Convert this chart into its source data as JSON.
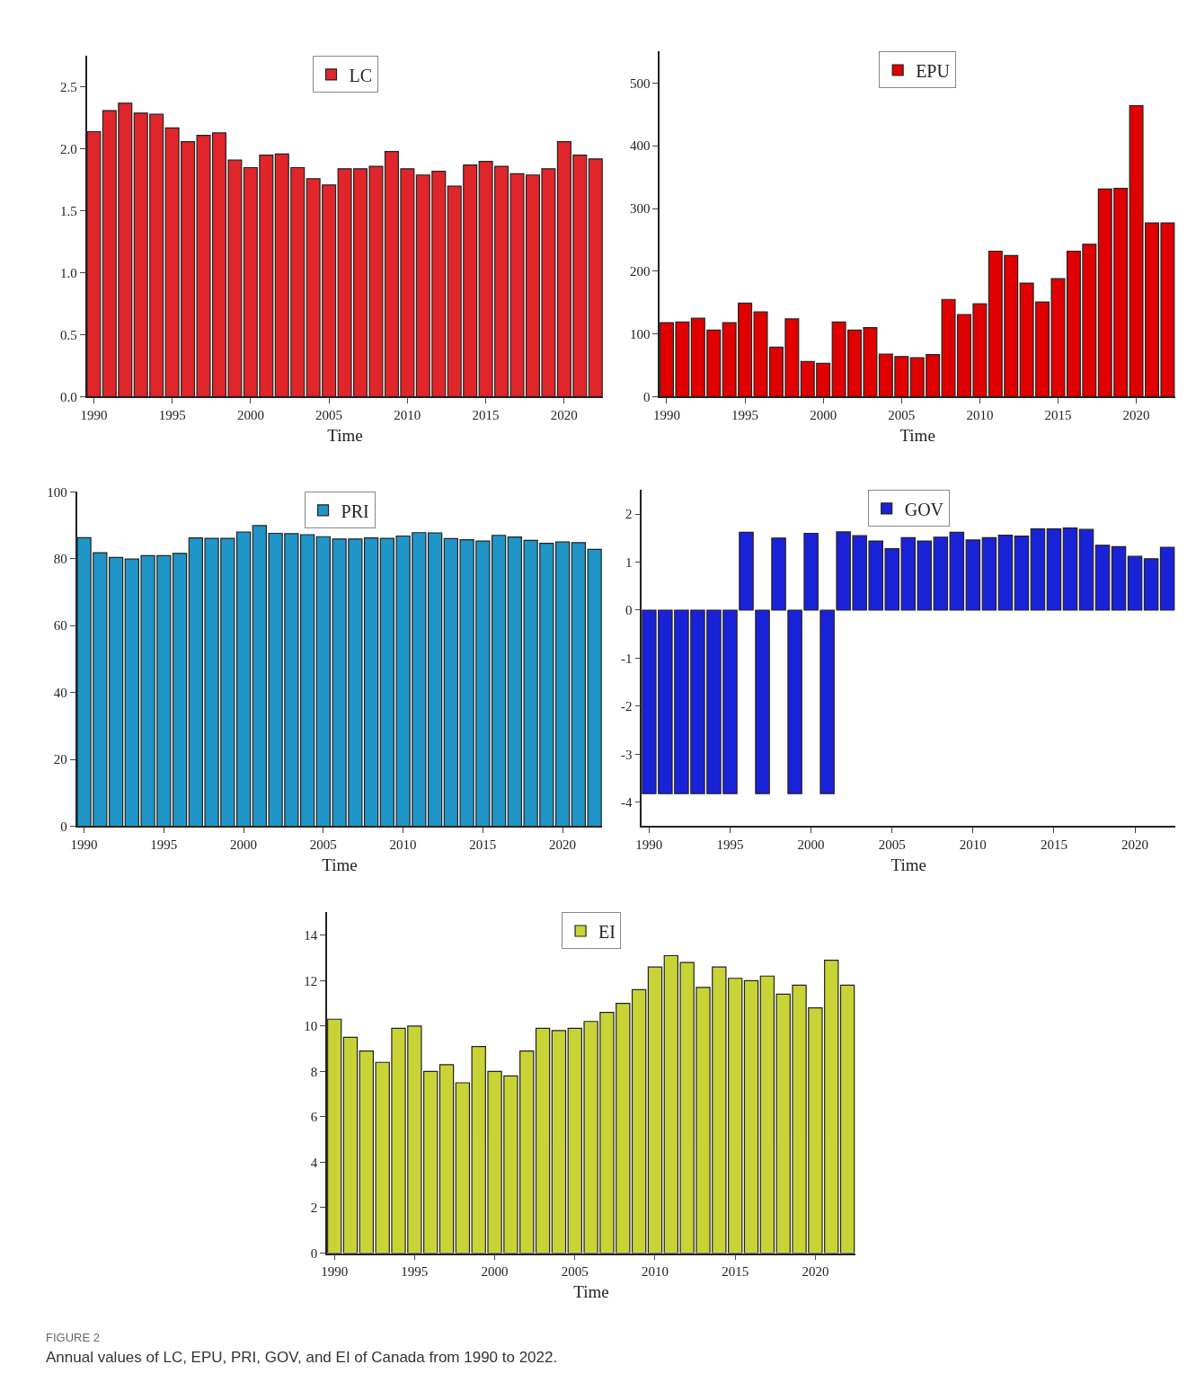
{
  "chart_data": [
    {
      "type": "bar",
      "xlabel": "Time",
      "x": [
        1990,
        1991,
        1992,
        1993,
        1994,
        1995,
        1996,
        1997,
        1998,
        1999,
        2000,
        2001,
        2002,
        2003,
        2004,
        2005,
        2006,
        2007,
        2008,
        2009,
        2010,
        2011,
        2012,
        2013,
        2014,
        2015,
        2016,
        2017,
        2018,
        2019,
        2020,
        2021,
        2022
      ],
      "xlim": [
        1989.55,
        2022.5
      ],
      "xticks": [
        1990,
        1995,
        2000,
        2005,
        2010,
        2015,
        2020
      ],
      "ylim": [
        0,
        2.75
      ],
      "yticks": [
        {
          "value": 0,
          "label": "0.0"
        },
        {
          "value": 0.5,
          "label": "0.5"
        },
        {
          "value": 1,
          "label": "1.0"
        },
        {
          "value": 1.5,
          "label": "1.5"
        },
        {
          "value": 2,
          "label": "2.0"
        },
        {
          "value": 2.5,
          "label": "2.5"
        }
      ],
      "legend": "top",
      "series": [
        {
          "name": "LC",
          "color": "#e0262b",
          "values": [
            2.14,
            2.31,
            2.37,
            2.29,
            2.28,
            2.17,
            2.06,
            2.11,
            2.13,
            1.91,
            1.85,
            1.95,
            1.96,
            1.85,
            1.76,
            1.71,
            1.84,
            1.84,
            1.86,
            1.98,
            1.84,
            1.79,
            1.82,
            1.7,
            1.87,
            1.9,
            1.86,
            1.8,
            1.79,
            1.84,
            2.06,
            1.95,
            1.92
          ]
        }
      ]
    },
    {
      "type": "bar",
      "xlabel": "Time",
      "x": [
        1990,
        1991,
        1992,
        1993,
        1994,
        1995,
        1996,
        1997,
        1998,
        1999,
        2000,
        2001,
        2002,
        2003,
        2004,
        2005,
        2006,
        2007,
        2008,
        2009,
        2010,
        2011,
        2012,
        2013,
        2014,
        2015,
        2016,
        2017,
        2018,
        2019,
        2020,
        2021,
        2022
      ],
      "xlim": [
        1989.55,
        2022.5
      ],
      "xticks": [
        1990,
        1995,
        2000,
        2005,
        2010,
        2015,
        2020
      ],
      "ylim": [
        0,
        550
      ],
      "yticks": [
        0,
        100,
        200,
        300,
        400,
        500
      ],
      "legend": "top",
      "series": [
        {
          "name": "EPU",
          "color": "#e00000",
          "values": [
            118,
            119,
            125,
            106,
            118,
            149,
            135,
            79,
            124,
            56,
            53,
            119,
            106,
            110,
            68,
            64,
            62,
            67,
            155,
            131,
            148,
            232,
            225,
            181,
            151,
            188,
            232,
            243,
            331,
            332,
            464,
            277,
            277
          ]
        }
      ]
    },
    {
      "type": "bar",
      "xlabel": "Time",
      "x": [
        1990,
        1991,
        1992,
        1993,
        1994,
        1995,
        1996,
        1997,
        1998,
        1999,
        2000,
        2001,
        2002,
        2003,
        2004,
        2005,
        2006,
        2007,
        2008,
        2009,
        2010,
        2011,
        2012,
        2013,
        2014,
        2015,
        2016,
        2017,
        2018,
        2019,
        2020,
        2021,
        2022
      ],
      "xlim": [
        1989.55,
        2022.5
      ],
      "xticks": [
        1990,
        1995,
        2000,
        2005,
        2010,
        2015,
        2020
      ],
      "ylim": [
        0,
        100
      ],
      "yticks": [
        0,
        20,
        40,
        60,
        80,
        100
      ],
      "legend": "top",
      "series": [
        {
          "name": "PRI",
          "color": "#1f95c8",
          "values": [
            86.3,
            81.8,
            80.4,
            79.9,
            80.9,
            80.9,
            81.6,
            86.2,
            86.1,
            86.1,
            88.0,
            89.9,
            87.6,
            87.5,
            87.2,
            86.6,
            85.9,
            85.9,
            86.2,
            86.1,
            86.8,
            87.8,
            87.7,
            86.0,
            85.7,
            85.3,
            87.0,
            86.5,
            85.5,
            84.6,
            85.0,
            84.8,
            82.8
          ]
        }
      ]
    },
    {
      "type": "bar",
      "xlabel": "Time",
      "x": [
        1990,
        1991,
        1992,
        1993,
        1994,
        1995,
        1996,
        1997,
        1998,
        1999,
        2000,
        2001,
        2002,
        2003,
        2004,
        2005,
        2006,
        2007,
        2008,
        2009,
        2010,
        2011,
        2012,
        2013,
        2014,
        2015,
        2016,
        2017,
        2018,
        2019,
        2020,
        2021,
        2022
      ],
      "xlim": [
        1989.55,
        2022.5
      ],
      "xticks": [
        1990,
        1995,
        2000,
        2005,
        2010,
        2015,
        2020
      ],
      "ylim": [
        -4.5,
        2.5
      ],
      "yticks": [
        -4,
        -3,
        -2,
        -1,
        0,
        1,
        2
      ],
      "legend": "top",
      "series": [
        {
          "name": "GOV",
          "color": "#1a22d8",
          "values": [
            -3.82,
            -3.82,
            -3.82,
            -3.82,
            -3.82,
            -3.82,
            1.62,
            -3.82,
            1.5,
            -3.82,
            1.6,
            -3.82,
            1.63,
            1.55,
            1.44,
            1.28,
            1.51,
            1.44,
            1.52,
            1.62,
            1.46,
            1.51,
            1.56,
            1.54,
            1.69,
            1.69,
            1.71,
            1.68,
            1.35,
            1.32,
            1.12,
            1.07,
            1.31
          ]
        }
      ]
    },
    {
      "type": "bar",
      "xlabel": "Time",
      "x": [
        1990,
        1991,
        1992,
        1993,
        1994,
        1995,
        1996,
        1997,
        1998,
        1999,
        2000,
        2001,
        2002,
        2003,
        2004,
        2005,
        2006,
        2007,
        2008,
        2009,
        2010,
        2011,
        2012,
        2013,
        2014,
        2015,
        2016,
        2017,
        2018,
        2019,
        2020,
        2021,
        2022
      ],
      "xlim": [
        1989.55,
        2022.5
      ],
      "xticks": [
        1990,
        1995,
        2000,
        2005,
        2010,
        2015,
        2020
      ],
      "ylim": [
        0,
        15
      ],
      "yticks": [
        0,
        2,
        4,
        6,
        8,
        10,
        12,
        14
      ],
      "legend": "top",
      "series": [
        {
          "name": "EI",
          "color": "#c8d436",
          "values": [
            10.3,
            9.5,
            8.9,
            8.4,
            9.9,
            10.0,
            8.0,
            8.3,
            7.5,
            9.1,
            8.0,
            7.8,
            8.9,
            9.9,
            9.8,
            9.9,
            10.2,
            10.6,
            11.0,
            11.6,
            12.6,
            13.1,
            12.8,
            11.7,
            12.6,
            12.1,
            12.0,
            12.2,
            11.4,
            11.8,
            10.8,
            12.9,
            11.8
          ]
        }
      ],
      "annotations": [
        "FIGURE 2",
        "Annual values of LC, EPU, PRI, GOV, and EI of Canada from 1990 to 2022."
      ]
    }
  ]
}
